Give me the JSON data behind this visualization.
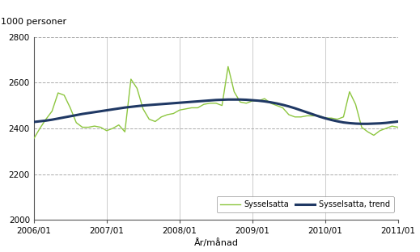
{
  "ylabel": "1000 personer",
  "xlabel": "År/månad",
  "ylim": [
    2000,
    2800
  ],
  "yticks": [
    2000,
    2200,
    2400,
    2600,
    2800
  ],
  "xtick_labels": [
    "2006/01",
    "2007/01",
    "2008/01",
    "2009/01",
    "2010/01",
    "2011/01"
  ],
  "xtick_positions": [
    0,
    12,
    24,
    36,
    48,
    60
  ],
  "xlim": [
    0,
    60
  ],
  "sysselsatta_color": "#8dc63f",
  "trend_color": "#1f3864",
  "sysselsatta_lw": 1.0,
  "trend_lw": 2.2,
  "legend_labels": [
    "Sysselsatta",
    "Sysselsatta, trend"
  ],
  "sysselsatta": [
    2355,
    2400,
    2440,
    2475,
    2555,
    2545,
    2490,
    2425,
    2405,
    2405,
    2410,
    2405,
    2390,
    2400,
    2415,
    2385,
    2615,
    2575,
    2485,
    2440,
    2430,
    2450,
    2460,
    2465,
    2480,
    2485,
    2490,
    2490,
    2505,
    2510,
    2510,
    2500,
    2670,
    2560,
    2515,
    2510,
    2520,
    2520,
    2530,
    2510,
    2500,
    2490,
    2460,
    2450,
    2450,
    2455,
    2455,
    2455,
    2445,
    2445,
    2440,
    2450,
    2560,
    2505,
    2405,
    2385,
    2370,
    2390,
    2400,
    2410,
    2405
  ],
  "trend": [
    2428,
    2431,
    2434,
    2438,
    2443,
    2448,
    2453,
    2458,
    2463,
    2467,
    2471,
    2475,
    2479,
    2483,
    2487,
    2491,
    2494,
    2497,
    2500,
    2502,
    2504,
    2506,
    2508,
    2510,
    2512,
    2514,
    2516,
    2518,
    2520,
    2522,
    2524,
    2525,
    2526,
    2526,
    2526,
    2525,
    2523,
    2521,
    2518,
    2514,
    2509,
    2503,
    2496,
    2488,
    2479,
    2470,
    2461,
    2452,
    2444,
    2437,
    2431,
    2426,
    2423,
    2421,
    2420,
    2420,
    2421,
    2422,
    2424,
    2427,
    2430
  ]
}
